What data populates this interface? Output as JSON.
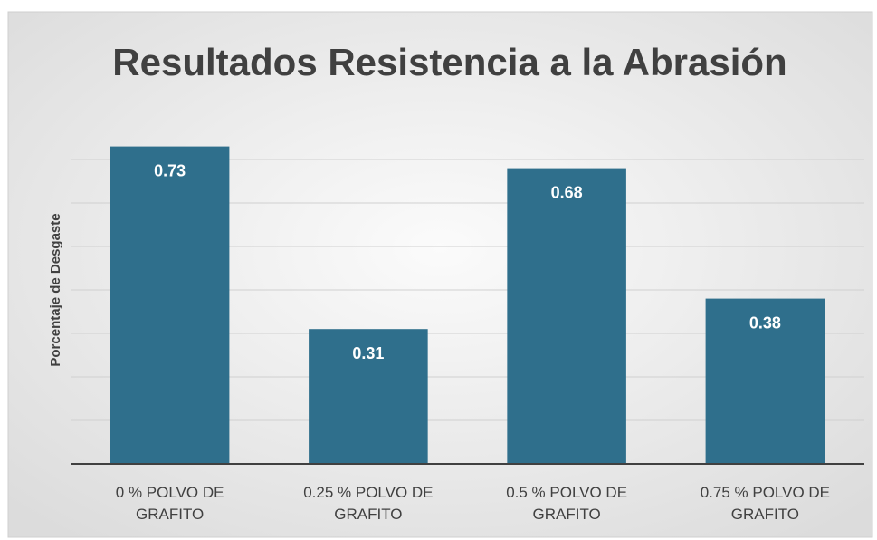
{
  "chart_data": {
    "type": "bar",
    "title": "Resultados Resistencia a la Abrasión",
    "y_label": "Porcentaje de Desgaste",
    "categories": [
      "0 % POLVO DE GRAFITO",
      "0.25 % POLVO DE GRAFITO",
      "0.5 % POLVO DE GRAFITO",
      "0.75 % POLVO DE GRAFITO"
    ],
    "values": [
      0.73,
      0.31,
      0.68,
      0.38
    ],
    "color": "#2f6f8c",
    "ylim": [
      0,
      0.8
    ],
    "yticks": [
      0,
      0.1,
      0.2,
      0.3,
      0.4,
      0.5,
      0.6,
      0.7,
      0.8
    ],
    "grid": true
  }
}
